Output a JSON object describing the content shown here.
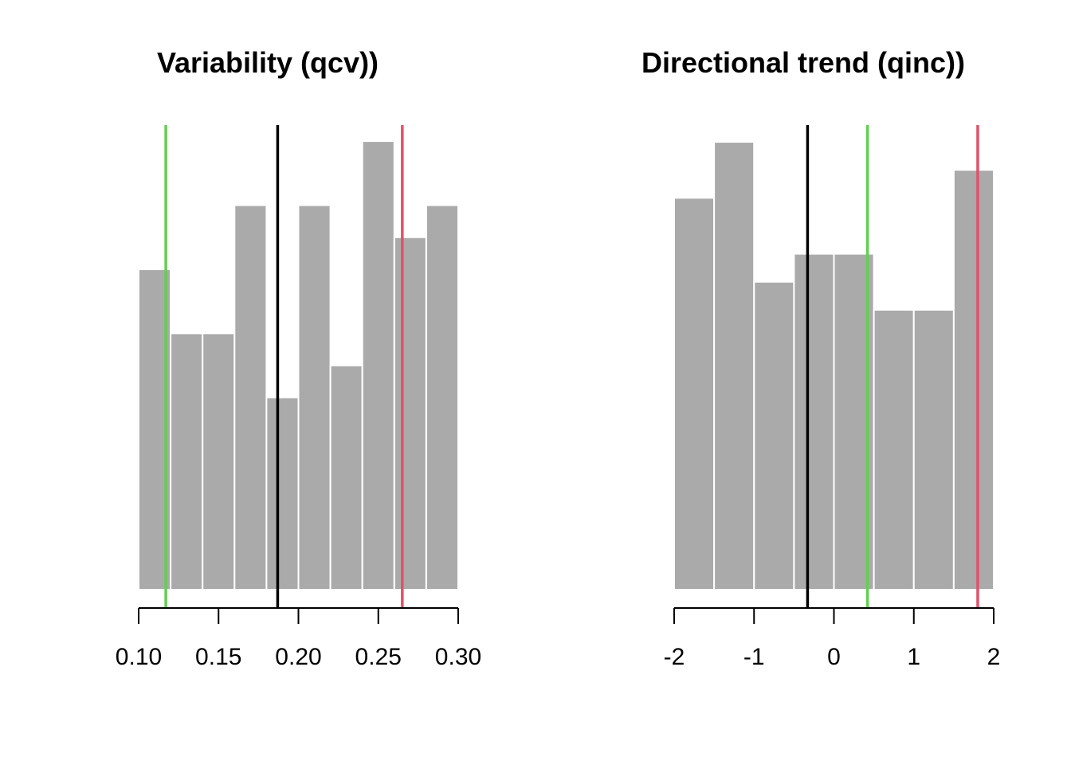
{
  "chart_data": [
    {
      "type": "bar",
      "title": "Variability (qcv))",
      "xlabel": "",
      "ylabel": "",
      "bin_edges": [
        0.1,
        0.12,
        0.14,
        0.16,
        0.18,
        0.2,
        0.22,
        0.24,
        0.26,
        0.28,
        0.3
      ],
      "counts": [
        10,
        8,
        8,
        12,
        6,
        12,
        7,
        14,
        11,
        12
      ],
      "ylim": [
        0,
        14.5
      ],
      "xlim": [
        0.1,
        0.3
      ],
      "x_ticks": [
        0.1,
        0.15,
        0.2,
        0.25,
        0.3
      ],
      "x_tick_labels": [
        "0.10",
        "0.15",
        "0.20",
        "0.25",
        "0.30"
      ],
      "bar_color": "#AAAAAA",
      "vlines": [
        {
          "x": 0.117,
          "color": "#61D04F"
        },
        {
          "x": 0.187,
          "color": "#000000"
        },
        {
          "x": 0.265,
          "color": "#DF536B"
        }
      ],
      "grid": false
    },
    {
      "type": "bar",
      "title": "Directional trend (qinc))",
      "xlabel": "",
      "ylabel": "",
      "bin_edges": [
        -2.0,
        -1.5,
        -1.0,
        -0.5,
        0.0,
        0.5,
        1.0,
        1.5,
        2.0
      ],
      "counts": [
        14,
        16,
        11,
        12,
        12,
        10,
        10,
        15
      ],
      "ylim": [
        0,
        16.6
      ],
      "xlim": [
        -2,
        2
      ],
      "x_ticks": [
        -2,
        -1,
        0,
        1,
        2
      ],
      "x_tick_labels": [
        "-2",
        "-1",
        "0",
        "1",
        "2"
      ],
      "bar_color": "#AAAAAA",
      "vlines": [
        {
          "x": -0.33,
          "color": "#000000"
        },
        {
          "x": 0.42,
          "color": "#61D04F"
        },
        {
          "x": 1.8,
          "color": "#DF536B"
        }
      ],
      "grid": false
    }
  ]
}
